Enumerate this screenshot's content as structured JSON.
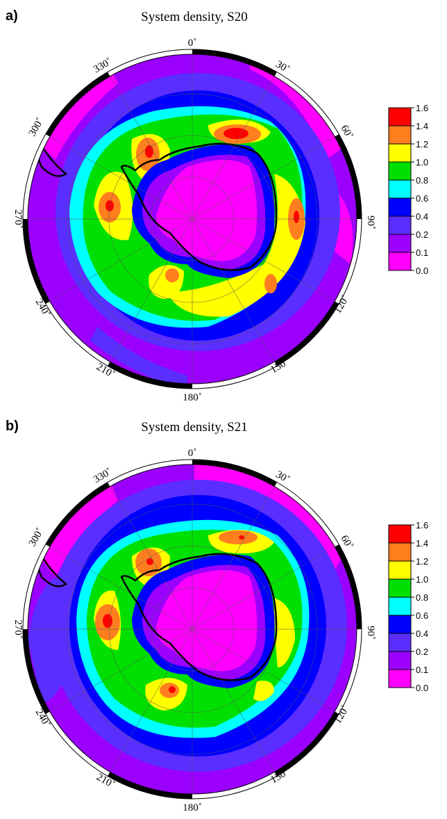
{
  "panels": [
    {
      "letter": "a)",
      "title": "System density, S20",
      "meridian_labels": [
        "0˚",
        "30˚",
        "60˚",
        "90˚",
        "120˚",
        "150˚",
        "180˚",
        "210˚",
        "240˚",
        "270˚",
        "300˚",
        "330˚"
      ],
      "colorbar_labels": [
        "1.6",
        "1.4",
        "1.2",
        "1.0",
        "0.8",
        "0.6",
        "0.4",
        "0.2",
        "0.1",
        "0.0"
      ]
    },
    {
      "letter": "b)",
      "title": "System density, S21",
      "meridian_labels": [
        "0˚",
        "30˚",
        "60˚",
        "90˚",
        "120˚",
        "150˚",
        "180˚",
        "210˚",
        "240˚",
        "270˚",
        "300˚",
        "330˚"
      ],
      "colorbar_labels": [
        "1.6",
        "1.4",
        "1.2",
        "1.0",
        "0.8",
        "0.6",
        "0.4",
        "0.2",
        "0.1",
        "0.0"
      ]
    }
  ],
  "colors": {
    "levels": [
      "#ff0000",
      "#ff7f1f",
      "#ffff00",
      "#00e000",
      "#00ffff",
      "#0000ff",
      "#5a2eff",
      "#9b00ff",
      "#ff00ff"
    ],
    "land_outline": "#000000",
    "frame": "#000000"
  }
}
